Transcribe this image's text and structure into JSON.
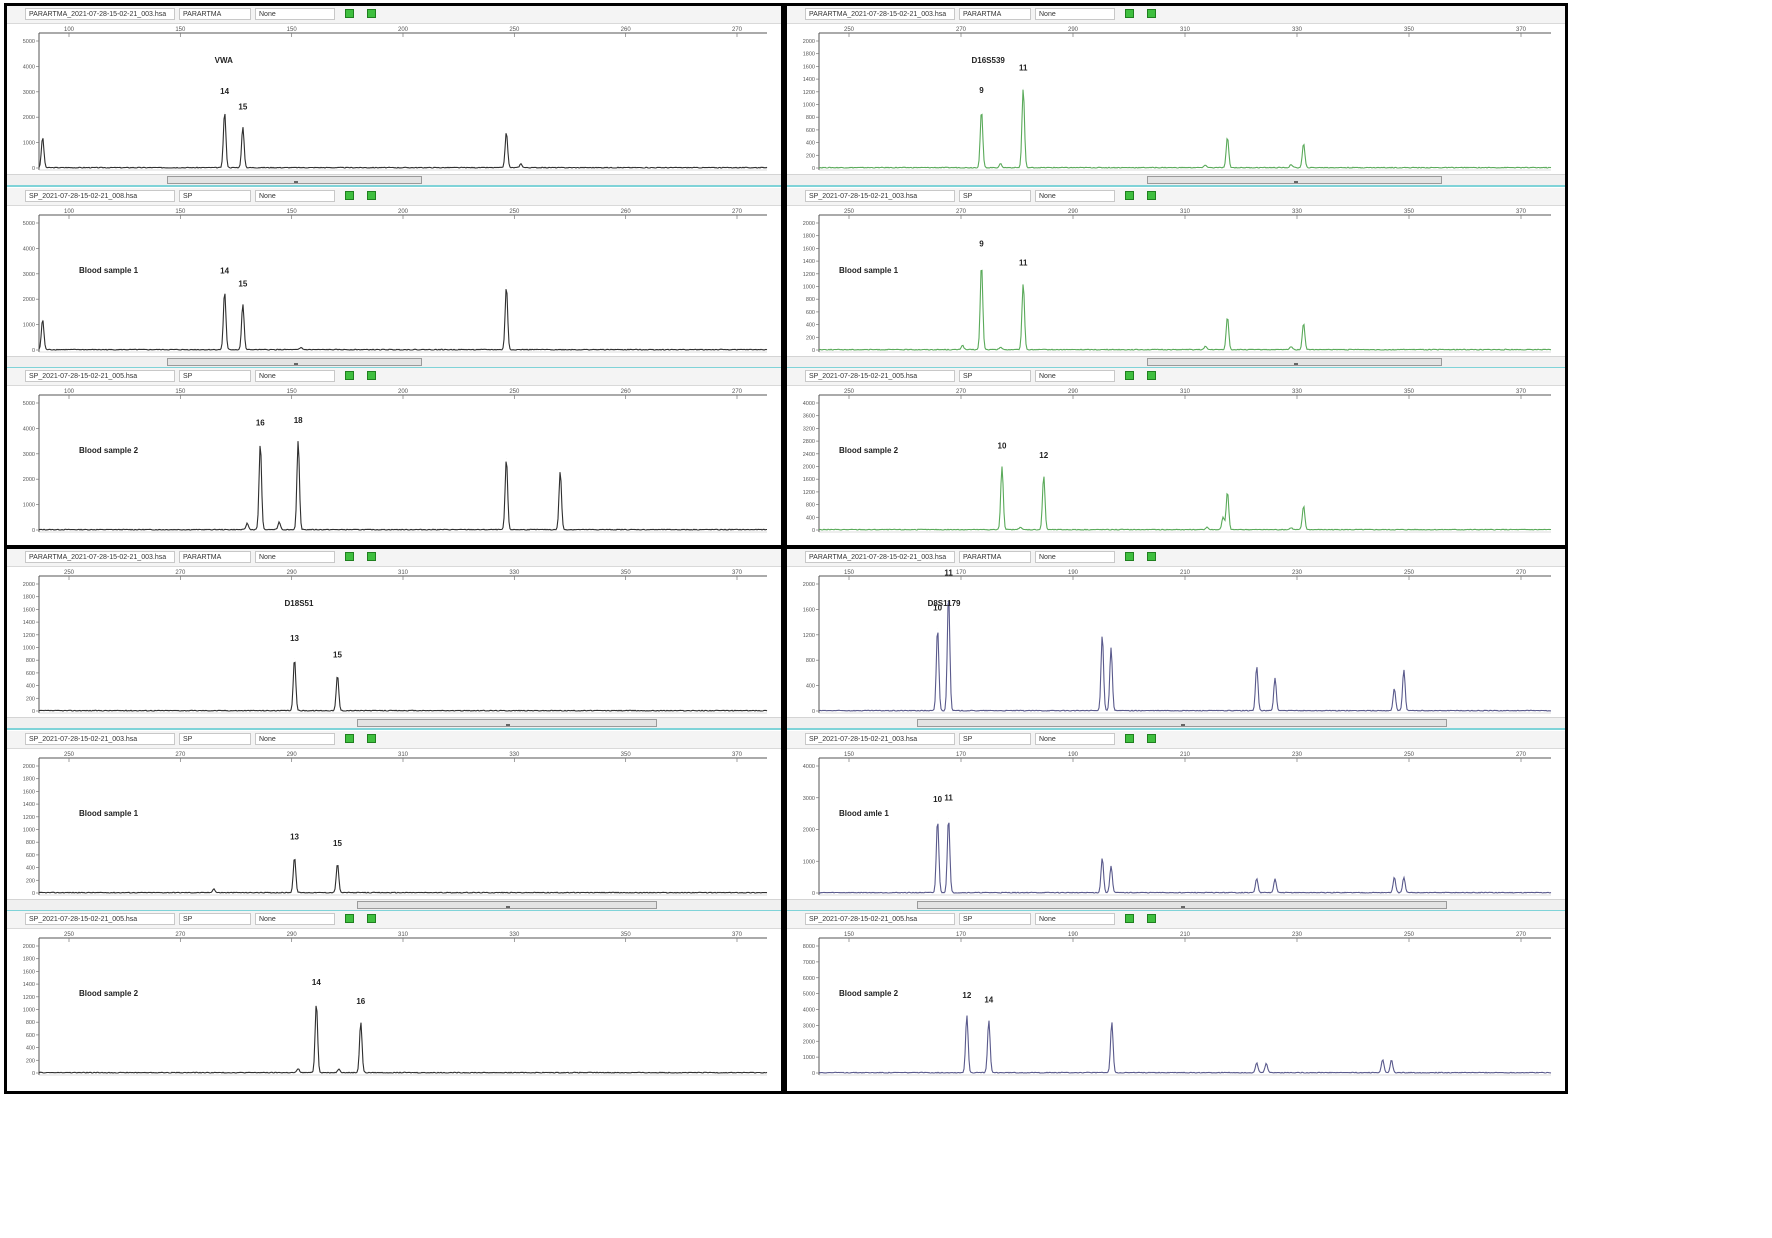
{
  "quadrants": [
    {
      "id": "q1",
      "color": "#2f2f2f",
      "x_ticks": [
        "100",
        "150",
        "150",
        "200",
        "250",
        "260",
        "270"
      ],
      "panels": [
        {
          "header": {
            "file": "PARARTMA_2021-07-28-15-02-21_003.hsa",
            "sample": "PARARTMA",
            "preset": "None"
          },
          "sample_label": "VWA",
          "y_ticks": [
            "5000",
            "4000",
            "3000",
            "2000",
            "1000",
            "0"
          ],
          "chart_data": {
            "type": "line",
            "ylim": [
              0,
              5000
            ],
            "xlim": [
              0,
              1000
            ],
            "allele_labels": [
              {
                "text": "14",
                "x": 255
              },
              {
                "text": "15",
                "x": 280
              }
            ],
            "peaks": [
              {
                "x": 5,
                "y": 1200
              },
              {
                "x": 255,
                "y": 2200
              },
              {
                "x": 280,
                "y": 1600
              },
              {
                "x": 642,
                "y": 1400
              },
              {
                "x": 662,
                "y": 150
              }
            ]
          }
        },
        {
          "header": {
            "file": "SP_2021-07-28-15-02-21_008.hsa",
            "sample": "SP",
            "preset": "None"
          },
          "sample_label": "Blood sample 1",
          "y_ticks": [
            "5000",
            "4000",
            "3000",
            "2000",
            "1000",
            "0"
          ],
          "chart_data": {
            "type": "line",
            "ylim": [
              0,
              5000
            ],
            "xlim": [
              0,
              1000
            ],
            "allele_labels": [
              {
                "text": "14",
                "x": 255
              },
              {
                "text": "15",
                "x": 280
              }
            ],
            "peaks": [
              {
                "x": 5,
                "y": 1200
              },
              {
                "x": 255,
                "y": 2300
              },
              {
                "x": 280,
                "y": 1800
              },
              {
                "x": 642,
                "y": 2500
              },
              {
                "x": 360,
                "y": 80
              }
            ]
          }
        },
        {
          "header": {
            "file": "SP_2021-07-28-15-02-21_005.hsa",
            "sample": "SP",
            "preset": "None"
          },
          "sample_label": "Blood sample 2",
          "y_ticks": [
            "5000",
            "4000",
            "3000",
            "2000",
            "1000",
            "0"
          ],
          "chart_data": {
            "type": "line",
            "ylim": [
              0,
              5000
            ],
            "xlim": [
              0,
              1000
            ],
            "allele_labels": [
              {
                "text": "16",
                "x": 304
              },
              {
                "text": "18",
                "x": 356
              }
            ],
            "peaks": [
              {
                "x": 286,
                "y": 250
              },
              {
                "x": 304,
                "y": 3400
              },
              {
                "x": 330,
                "y": 300
              },
              {
                "x": 356,
                "y": 3500
              },
              {
                "x": 642,
                "y": 2800
              },
              {
                "x": 716,
                "y": 2300
              }
            ]
          }
        }
      ]
    },
    {
      "id": "q2",
      "color": "#5aaa5a",
      "x_ticks": [
        "250",
        "270",
        "290",
        "310",
        "330",
        "350",
        "370"
      ],
      "panels": [
        {
          "header": {
            "file": "PARARTMA_2021-07-28-15-02-21_003.hsa",
            "sample": "PARARTMA",
            "preset": "None"
          },
          "sample_label": "D16S539",
          "y_ticks": [
            "2000",
            "1800",
            "1600",
            "1400",
            "1200",
            "1000",
            "800",
            "600",
            "400",
            "200",
            "0"
          ],
          "chart_data": {
            "type": "line",
            "ylim": [
              0,
              2000
            ],
            "xlim": [
              0,
              1000
            ],
            "allele_labels": [
              {
                "text": "9",
                "x": 222
              },
              {
                "text": "11",
                "x": 279
              }
            ],
            "peaks": [
              {
                "x": 222,
                "y": 900
              },
              {
                "x": 248,
                "y": 60
              },
              {
                "x": 279,
                "y": 1250
              },
              {
                "x": 528,
                "y": 40
              },
              {
                "x": 558,
                "y": 480
              },
              {
                "x": 645,
                "y": 50
              },
              {
                "x": 662,
                "y": 380
              }
            ]
          }
        },
        {
          "header": {
            "file": "SP_2021-07-28-15-02-21_003.hsa",
            "sample": "SP",
            "preset": "None"
          },
          "sample_label": "Blood sample 1",
          "y_ticks": [
            "2000",
            "1800",
            "1600",
            "1400",
            "1200",
            "1000",
            "800",
            "600",
            "400",
            "200",
            "0"
          ],
          "chart_data": {
            "type": "line",
            "ylim": [
              0,
              2000
            ],
            "xlim": [
              0,
              1000
            ],
            "allele_labels": [
              {
                "text": "9",
                "x": 222
              },
              {
                "text": "11",
                "x": 279
              }
            ],
            "peaks": [
              {
                "x": 196,
                "y": 70
              },
              {
                "x": 222,
                "y": 1350
              },
              {
                "x": 248,
                "y": 40
              },
              {
                "x": 279,
                "y": 1050
              },
              {
                "x": 528,
                "y": 50
              },
              {
                "x": 558,
                "y": 520
              },
              {
                "x": 645,
                "y": 50
              },
              {
                "x": 662,
                "y": 420
              }
            ]
          }
        },
        {
          "header": {
            "file": "SP_2021-07-28-15-02-21_005.hsa",
            "sample": "SP",
            "preset": "None"
          },
          "sample_label": "Blood sample 2",
          "y_ticks": [
            "4000",
            "3600",
            "3200",
            "2800",
            "2400",
            "2000",
            "1600",
            "1200",
            "800",
            "400",
            "0"
          ],
          "chart_data": {
            "type": "line",
            "ylim": [
              0,
              4000
            ],
            "xlim": [
              0,
              1000
            ],
            "allele_labels": [
              {
                "text": "10",
                "x": 250
              },
              {
                "text": "12",
                "x": 307
              }
            ],
            "peaks": [
              {
                "x": 250,
                "y": 2000
              },
              {
                "x": 275,
                "y": 80
              },
              {
                "x": 307,
                "y": 1700
              },
              {
                "x": 530,
                "y": 80
              },
              {
                "x": 552,
                "y": 400
              },
              {
                "x": 558,
                "y": 1200
              },
              {
                "x": 645,
                "y": 60
              },
              {
                "x": 662,
                "y": 750
              }
            ]
          }
        }
      ]
    },
    {
      "id": "q3",
      "color": "#2f2f2f",
      "x_ticks": [
        "250",
        "270",
        "290",
        "310",
        "330",
        "350",
        "370"
      ],
      "panels": [
        {
          "header": {
            "file": "PARARTMA_2021-07-28-15-02-21_003.hsa",
            "sample": "PARARTMA",
            "preset": "None"
          },
          "sample_label": "D18S51",
          "y_ticks": [
            "2000",
            "1800",
            "1600",
            "1400",
            "1200",
            "1000",
            "800",
            "600",
            "400",
            "200",
            "0"
          ],
          "chart_data": {
            "type": "line",
            "ylim": [
              0,
              2000
            ],
            "xlim": [
              0,
              1000
            ],
            "allele_labels": [
              {
                "text": "13",
                "x": 351
              },
              {
                "text": "15",
                "x": 410
              }
            ],
            "peaks": [
              {
                "x": 351,
                "y": 820
              },
              {
                "x": 410,
                "y": 560
              }
            ]
          }
        },
        {
          "header": {
            "file": "SP_2021-07-28-15-02-21_003.hsa",
            "sample": "SP",
            "preset": "None"
          },
          "sample_label": "Blood sample 1",
          "y_ticks": [
            "2000",
            "1800",
            "1600",
            "1400",
            "1200",
            "1000",
            "800",
            "600",
            "400",
            "200",
            "0"
          ],
          "chart_data": {
            "type": "line",
            "ylim": [
              0,
              2000
            ],
            "xlim": [
              0,
              1000
            ],
            "allele_labels": [
              {
                "text": "13",
                "x": 351
              },
              {
                "text": "15",
                "x": 410
              }
            ],
            "peaks": [
              {
                "x": 240,
                "y": 60
              },
              {
                "x": 351,
                "y": 560
              },
              {
                "x": 410,
                "y": 460
              }
            ]
          }
        },
        {
          "header": {
            "file": "SP_2021-07-28-15-02-21_005.hsa",
            "sample": "SP",
            "preset": "None"
          },
          "sample_label": "Blood sample 2",
          "y_ticks": [
            "2000",
            "1800",
            "1600",
            "1400",
            "1200",
            "1000",
            "800",
            "600",
            "400",
            "200",
            "0"
          ],
          "chart_data": {
            "type": "line",
            "ylim": [
              0,
              2000
            ],
            "xlim": [
              0,
              1000
            ],
            "allele_labels": [
              {
                "text": "14",
                "x": 381
              },
              {
                "text": "16",
                "x": 442
              }
            ],
            "peaks": [
              {
                "x": 356,
                "y": 60
              },
              {
                "x": 381,
                "y": 1100
              },
              {
                "x": 412,
                "y": 60
              },
              {
                "x": 442,
                "y": 800
              }
            ]
          }
        }
      ]
    },
    {
      "id": "q4",
      "color": "#5a5a8c",
      "x_ticks": [
        "150",
        "170",
        "190",
        "210",
        "230",
        "250",
        "270"
      ],
      "panels": [
        {
          "header": {
            "file": "PARARTMA_2021-07-28-15-02-21_003.hsa",
            "sample": "PARARTMA",
            "preset": "None"
          },
          "sample_label": "D8S1179",
          "y_ticks": [
            "2000",
            "1600",
            "1200",
            "800",
            "400",
            "0"
          ],
          "chart_data": {
            "type": "line",
            "ylim": [
              0,
              2000
            ],
            "xlim": [
              0,
              1000
            ],
            "allele_labels": [
              {
                "text": "10",
                "x": 162
              },
              {
                "text": "11",
                "x": 177
              }
            ],
            "peaks": [
              {
                "x": 162,
                "y": 1300
              },
              {
                "x": 177,
                "y": 1850
              },
              {
                "x": 387,
                "y": 1200
              },
              {
                "x": 399,
                "y": 1000
              },
              {
                "x": 598,
                "y": 700
              },
              {
                "x": 623,
                "y": 520
              },
              {
                "x": 786,
                "y": 350
              },
              {
                "x": 799,
                "y": 650
              }
            ]
          }
        },
        {
          "header": {
            "file": "SP_2021-07-28-15-02-21_003.hsa",
            "sample": "SP",
            "preset": "None"
          },
          "sample_label": "Blood amle 1",
          "y_ticks": [
            "4000",
            "3000",
            "2000",
            "1000",
            "0"
          ],
          "chart_data": {
            "type": "line",
            "ylim": [
              0,
              4000
            ],
            "xlim": [
              0,
              1000
            ],
            "allele_labels": [
              {
                "text": "10",
                "x": 162
              },
              {
                "text": "11",
                "x": 177
              }
            ],
            "peaks": [
              {
                "x": 162,
                "y": 2300
              },
              {
                "x": 177,
                "y": 2350
              },
              {
                "x": 387,
                "y": 1100
              },
              {
                "x": 399,
                "y": 850
              },
              {
                "x": 598,
                "y": 450
              },
              {
                "x": 623,
                "y": 430
              },
              {
                "x": 786,
                "y": 480
              },
              {
                "x": 799,
                "y": 480
              }
            ]
          }
        },
        {
          "header": {
            "file": "SP_2021-07-28-15-02-21_005.hsa",
            "sample": "SP",
            "preset": "None"
          },
          "sample_label": "Blood sample 2",
          "y_ticks": [
            "8000",
            "7000",
            "6000",
            "5000",
            "4000",
            "3000",
            "2000",
            "1000",
            "0"
          ],
          "chart_data": {
            "type": "line",
            "ylim": [
              0,
              8000
            ],
            "xlim": [
              0,
              1000
            ],
            "allele_labels": [
              {
                "text": "12",
                "x": 202
              },
              {
                "text": "14",
                "x": 232
              }
            ],
            "peaks": [
              {
                "x": 202,
                "y": 3600
              },
              {
                "x": 232,
                "y": 3300
              },
              {
                "x": 400,
                "y": 3200
              },
              {
                "x": 598,
                "y": 600
              },
              {
                "x": 611,
                "y": 600
              },
              {
                "x": 770,
                "y": 850
              },
              {
                "x": 782,
                "y": 800
              }
            ]
          }
        }
      ]
    }
  ]
}
